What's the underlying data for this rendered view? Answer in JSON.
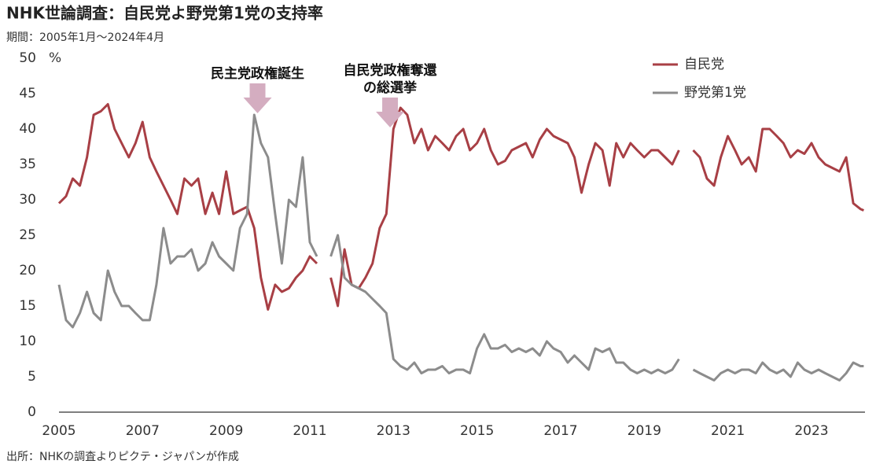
{
  "chart_data": {
    "type": "line",
    "title": "NHK世論調査：自民党よ野党第1党の支持率",
    "subtitle": "期間：2005年1月～2024年4月",
    "source": "出所：NHKの調査よりピクテ・ジャパンが作成",
    "y_unit": "%",
    "xlim": [
      2005,
      2024.28
    ],
    "xticks": [
      2005,
      2007,
      2009,
      2011,
      2013,
      2015,
      2017,
      2019,
      2021,
      2023
    ],
    "ylim": [
      0,
      50
    ],
    "yticks": [
      0,
      5,
      10,
      15,
      20,
      25,
      30,
      35,
      40,
      45,
      50
    ],
    "grid": false,
    "legend": "top-right",
    "annotations": [
      {
        "text": [
          "民主党政権誕生"
        ],
        "x": 2009.75,
        "y": 42
      },
      {
        "text": [
          "自民党政権奪還",
          "の総選挙"
        ],
        "x": 2012.92,
        "y": 40
      }
    ],
    "x": [
      2005,
      2005.17,
      2005.33,
      2005.5,
      2005.67,
      2005.83,
      2006,
      2006.17,
      2006.33,
      2006.5,
      2006.67,
      2006.83,
      2007,
      2007.17,
      2007.33,
      2007.5,
      2007.67,
      2007.83,
      2008,
      2008.17,
      2008.33,
      2008.5,
      2008.67,
      2008.83,
      2009,
      2009.17,
      2009.33,
      2009.5,
      2009.67,
      2009.83,
      2010,
      2010.17,
      2010.33,
      2010.5,
      2010.67,
      2010.83,
      2011,
      2011.17,
      2011.33,
      2011.5,
      2011.67,
      2011.83,
      2012,
      2012.17,
      2012.33,
      2012.5,
      2012.67,
      2012.83,
      2013,
      2013.17,
      2013.33,
      2013.5,
      2013.67,
      2013.83,
      2014,
      2014.17,
      2014.33,
      2014.5,
      2014.67,
      2014.83,
      2015,
      2015.17,
      2015.33,
      2015.5,
      2015.67,
      2015.83,
      2016,
      2016.17,
      2016.33,
      2016.5,
      2016.67,
      2016.83,
      2017,
      2017.17,
      2017.33,
      2017.5,
      2017.67,
      2017.83,
      2018,
      2018.17,
      2018.33,
      2018.5,
      2018.67,
      2018.83,
      2019,
      2019.17,
      2019.33,
      2019.5,
      2019.67,
      2019.83,
      2020,
      2020.17,
      2020.33,
      2020.5,
      2020.67,
      2020.83,
      2021,
      2021.17,
      2021.33,
      2021.5,
      2021.67,
      2021.83,
      2022,
      2022.17,
      2022.33,
      2022.5,
      2022.67,
      2022.83,
      2023,
      2023.17,
      2023.33,
      2023.5,
      2023.67,
      2023.83,
      2024,
      2024.17,
      2024.25
    ],
    "series": [
      {
        "name": "自民党",
        "color": "#a83f45",
        "values": [
          29.5,
          30.5,
          33,
          32,
          36,
          42,
          42.5,
          43.5,
          40,
          38,
          36,
          38,
          41,
          36,
          34,
          32,
          30,
          28,
          33,
          32,
          33,
          28,
          31,
          28,
          34,
          28,
          28.5,
          29,
          26,
          19,
          14.5,
          18,
          17,
          17.5,
          19,
          20,
          22,
          21,
          null,
          19,
          15,
          23,
          18,
          17.5,
          19,
          21,
          26,
          28,
          40,
          43,
          42,
          38,
          40,
          37,
          39,
          38,
          37,
          39,
          40,
          37,
          38,
          40,
          37,
          35,
          35.5,
          37,
          37.5,
          38,
          36,
          38.5,
          40,
          39,
          38.5,
          38,
          36,
          31,
          35,
          38,
          37,
          32,
          38,
          36,
          38,
          37,
          36,
          37,
          37,
          36,
          35,
          37,
          null,
          37,
          36,
          33,
          32,
          36,
          39,
          37,
          35,
          36,
          34,
          40,
          40,
          39,
          38,
          36,
          37,
          36.5,
          38,
          36,
          35,
          34.5,
          34,
          36,
          29.5,
          28.7,
          28.5
        ]
      },
      {
        "name": "野党第1党",
        "color": "#8c8c8c",
        "values": [
          18,
          13,
          12,
          14,
          17,
          14,
          13,
          20,
          17,
          15,
          15,
          14,
          13,
          13,
          18,
          26,
          21,
          22,
          22,
          23,
          20,
          21,
          24,
          22,
          21,
          20,
          26,
          28,
          42,
          38,
          36,
          28,
          21,
          30,
          29,
          36,
          24,
          22,
          null,
          22,
          25,
          19,
          18,
          17.5,
          17,
          16,
          15,
          14,
          7.5,
          6.5,
          6,
          7,
          5.5,
          6,
          6,
          6.5,
          5.5,
          6,
          6,
          5.5,
          9,
          11,
          9,
          9,
          9.5,
          8.5,
          9,
          8.5,
          9,
          8,
          10,
          9,
          8.5,
          7,
          8,
          7,
          6,
          9,
          8.5,
          9,
          7,
          7,
          6,
          5.5,
          6,
          5.5,
          6,
          5.5,
          6,
          7.5,
          null,
          6,
          5.5,
          5,
          4.5,
          5.5,
          6,
          5.5,
          6,
          6,
          5.5,
          7,
          6,
          5.5,
          6,
          5,
          7,
          6,
          5.5,
          6,
          5.5,
          5,
          4.5,
          5.5,
          7,
          6.5,
          6.5
        ]
      }
    ]
  }
}
